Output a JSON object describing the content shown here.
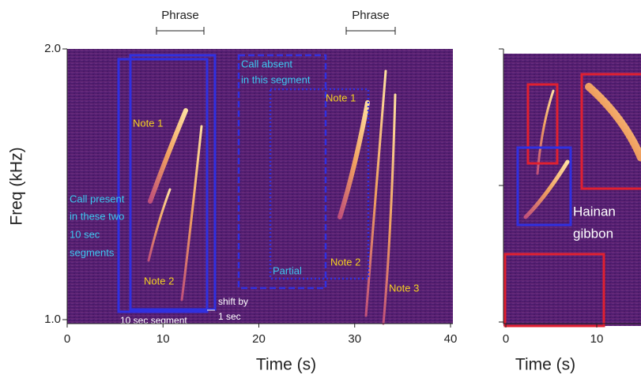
{
  "left_panel": {
    "x_label": "Time (s)",
    "y_label": "Freq (kHz)",
    "xlim": [
      0,
      40
    ],
    "xticks": [
      0,
      10,
      20,
      30,
      40
    ],
    "ylim": [
      1.0,
      2.0
    ],
    "yticks": [
      {
        "value": 1,
        "label": "1.0"
      },
      {
        "value": 2,
        "label": "2.0"
      }
    ],
    "phrase_labels": [
      "Phrase",
      "Phrase"
    ],
    "call_present": [
      "Call present",
      "in these two",
      "10 sec",
      "segments"
    ],
    "call_absent": [
      "Call absent",
      "in this segment"
    ],
    "notes": [
      "Note 1",
      "Note 2",
      "Note 1",
      "Note 2",
      "Note 3"
    ],
    "partial": "Partial",
    "segment_label": "10 sec segment",
    "shift_label": [
      "shift by",
      "1 sec"
    ]
  },
  "right_panel": {
    "x_label": "Time (s)",
    "xlim": [
      0,
      15
    ],
    "xticks": [
      0,
      10
    ],
    "species": [
      "Hainan",
      "gibbon"
    ]
  }
}
